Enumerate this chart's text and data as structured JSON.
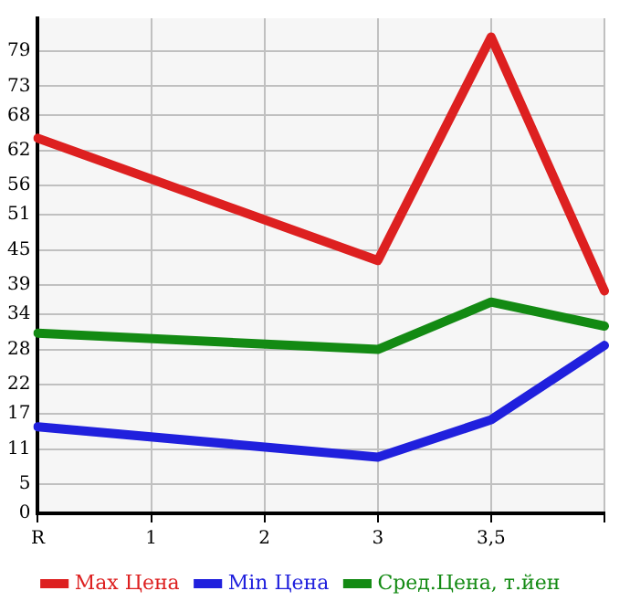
{
  "chart_data": {
    "type": "line",
    "categories": [
      "R",
      "1",
      "2",
      "3",
      "3,5",
      null
    ],
    "series": [
      {
        "name": "Max Цена",
        "color": "#dd2020",
        "values": [
          64.1,
          null,
          null,
          43.2,
          81.4,
          38.0
        ]
      },
      {
        "name": "Min Цена",
        "color": "#2020dd",
        "values": [
          14.8,
          null,
          null,
          9.6,
          16.0,
          28.7
        ]
      },
      {
        "name": "Сред.Цена, т.йен",
        "color": "#138a13",
        "values": [
          30.8,
          null,
          null,
          28.0,
          36.1,
          32.0
        ]
      }
    ],
    "ylim": [
      0,
      84.6
    ],
    "yticks": [
      0,
      5,
      11,
      17,
      22,
      28,
      34,
      39,
      45,
      51,
      56,
      62,
      68,
      73,
      79
    ],
    "grid": true,
    "legend": "bottom",
    "marker": "none",
    "line_style": "solid"
  }
}
